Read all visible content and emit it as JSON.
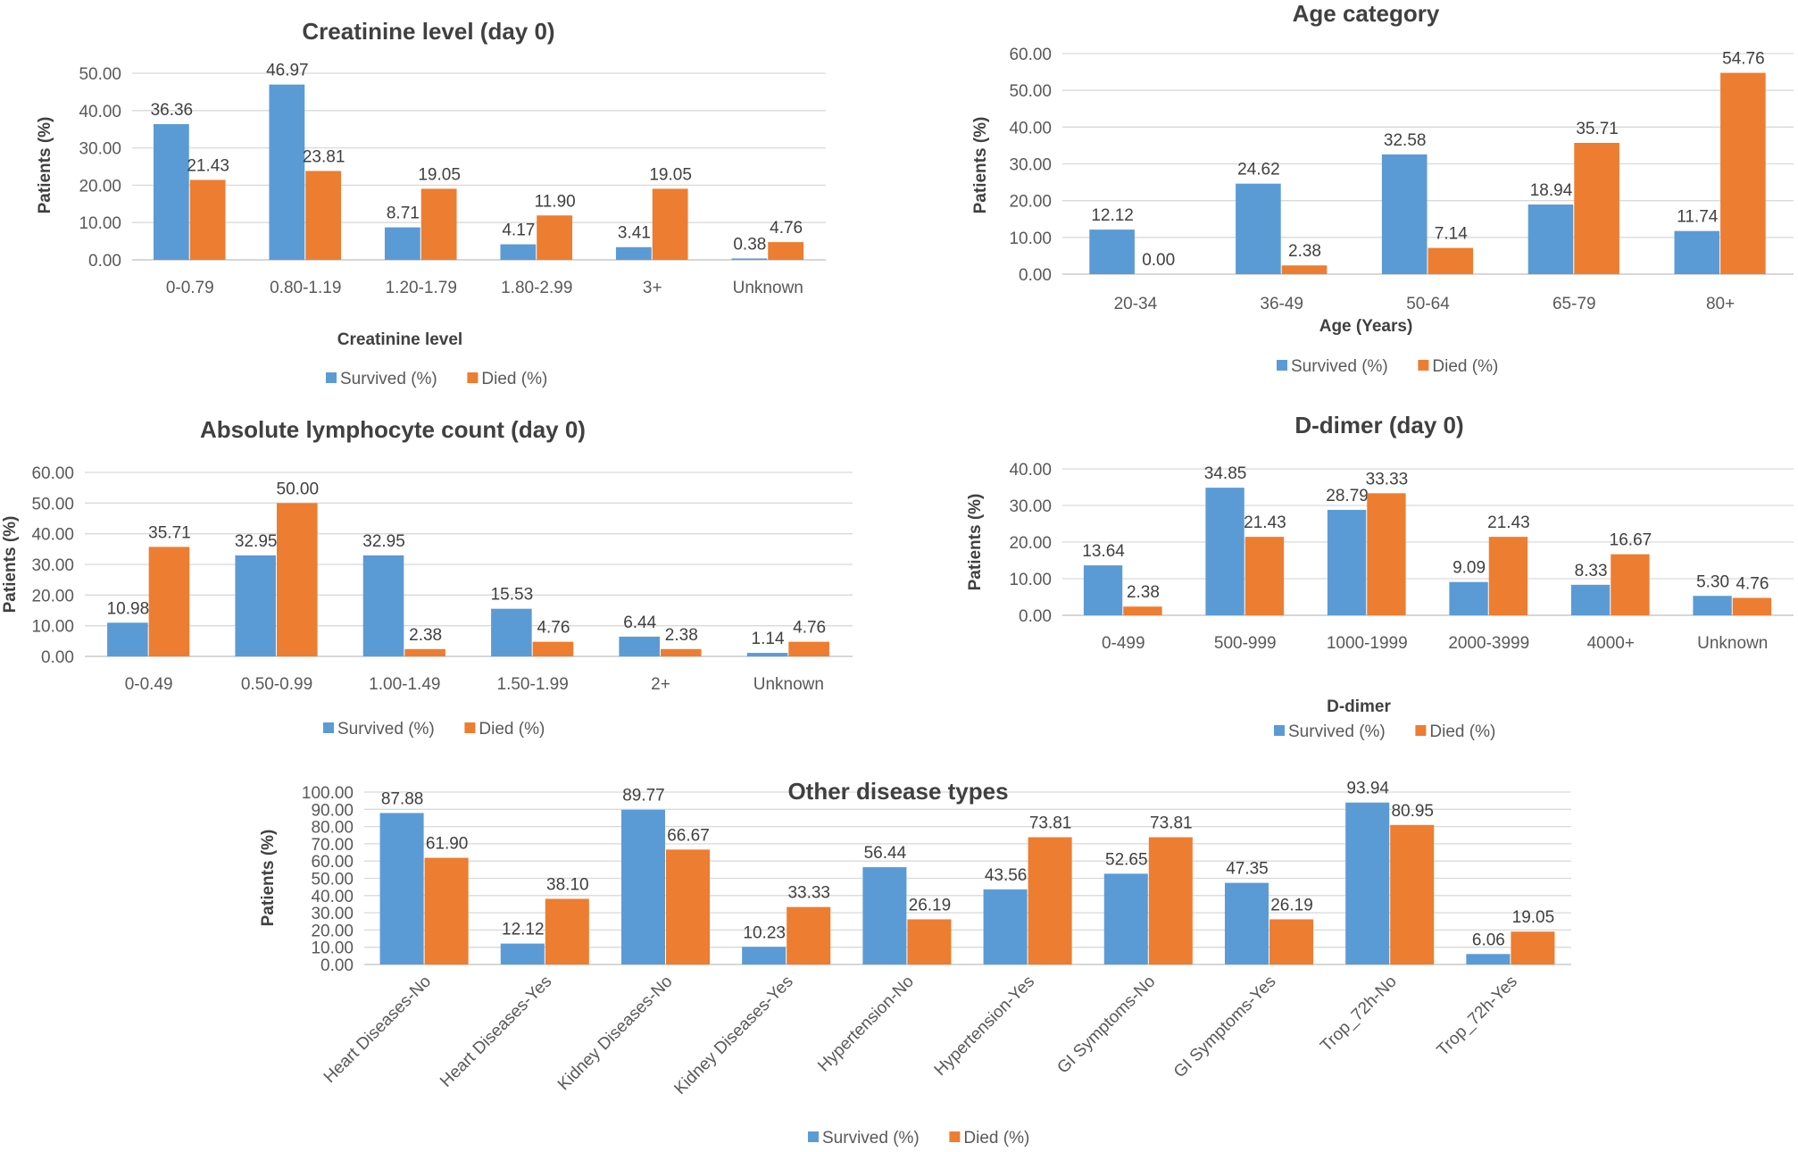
{
  "colors": {
    "survived": "#5b9bd5",
    "died": "#ed7d31"
  },
  "chart_data": [
    {
      "id": "creatinine",
      "type": "bar",
      "title": "Creatinine level (day 0)",
      "xlabel": "Creatinine level",
      "ylabel": "Patients (%)",
      "ylim": [
        0,
        50
      ],
      "yticks": [
        "0.00",
        "10.00",
        "20.00",
        "30.00",
        "40.00",
        "50.00"
      ],
      "categories": [
        "0-0.79",
        "0.80-1.19",
        "1.20-1.79",
        "1.80-2.99",
        "3+",
        "Unknown"
      ],
      "series": [
        {
          "name": "Survived (%)",
          "values": [
            36.36,
            46.97,
            8.71,
            4.17,
            3.41,
            0.38
          ],
          "labels": [
            "36.36",
            "46.97",
            "8.71",
            "4.17",
            "3.41",
            "0.38"
          ]
        },
        {
          "name": "Died (%)",
          "values": [
            21.43,
            23.81,
            19.05,
            11.9,
            19.05,
            4.76
          ],
          "labels": [
            "21.43",
            "23.81",
            "19.05",
            "11.90",
            "19.05",
            "4.76"
          ]
        }
      ],
      "legend": "bottom"
    },
    {
      "id": "age",
      "type": "bar",
      "title": "Age category",
      "xlabel": "Age (Years)",
      "ylabel": "Patients (%)",
      "ylim": [
        0,
        60
      ],
      "yticks": [
        "0.00",
        "10.00",
        "20.00",
        "30.00",
        "40.00",
        "50.00",
        "60.00"
      ],
      "categories": [
        "20-34",
        "36-49",
        "50-64",
        "65-79",
        "80+"
      ],
      "series": [
        {
          "name": "Survived (%)",
          "values": [
            12.12,
            24.62,
            32.58,
            18.94,
            11.74
          ],
          "labels": [
            "12.12",
            "24.62",
            "32.58",
            "18.94",
            "11.74"
          ]
        },
        {
          "name": "Died (%)",
          "values": [
            0.0,
            2.38,
            7.14,
            35.71,
            54.76
          ],
          "labels": [
            "0.00",
            "2.38",
            "7.14",
            "35.71",
            "54.76"
          ]
        }
      ],
      "legend": "bottom"
    },
    {
      "id": "lymphocyte",
      "type": "bar",
      "title": "Absolute lymphocyte count (day 0)",
      "xlabel": "",
      "ylabel": "Patients (%)",
      "ylim": [
        0,
        60
      ],
      "yticks": [
        "0.00",
        "10.00",
        "20.00",
        "30.00",
        "40.00",
        "50.00",
        "60.00"
      ],
      "categories": [
        "0-0.49",
        "0.50-0.99",
        "1.00-1.49",
        "1.50-1.99",
        "2+",
        "Unknown"
      ],
      "series": [
        {
          "name": "Survived (%)",
          "values": [
            10.98,
            32.95,
            32.95,
            15.53,
            6.44,
            1.14
          ],
          "labels": [
            "10.98",
            "32.95",
            "32.95",
            "15.53",
            "6.44",
            "1.14"
          ]
        },
        {
          "name": "Died (%)",
          "values": [
            35.71,
            50.0,
            2.38,
            4.76,
            2.38,
            4.76
          ],
          "labels": [
            "35.71",
            "50.00",
            "2.38",
            "4.76",
            "2.38",
            "4.76"
          ]
        }
      ],
      "legend": "bottom"
    },
    {
      "id": "ddimer",
      "type": "bar",
      "title": "D-dimer (day 0)",
      "xlabel": "D-dimer",
      "ylabel": "Patients (%)",
      "ylim": [
        0,
        40
      ],
      "yticks": [
        "0.00",
        "10.00",
        "20.00",
        "30.00",
        "40.00"
      ],
      "categories": [
        "0-499",
        "500-999",
        "1000-1999",
        "2000-3999",
        "4000+",
        "Unknown"
      ],
      "series": [
        {
          "name": "Survived (%)",
          "values": [
            13.64,
            34.85,
            28.79,
            9.09,
            8.33,
            5.3
          ],
          "labels": [
            "13.64",
            "34.85",
            "28.79",
            "9.09",
            "8.33",
            "5.30"
          ]
        },
        {
          "name": "Died (%)",
          "values": [
            2.38,
            21.43,
            33.33,
            21.43,
            16.67,
            4.76
          ],
          "labels": [
            "2.38",
            "21.43",
            "33.33",
            "21.43",
            "16.67",
            "4.76"
          ]
        }
      ],
      "legend": "bottom"
    },
    {
      "id": "other",
      "type": "bar",
      "title": "Other disease types",
      "xlabel": "",
      "ylabel": "Patients (%)",
      "ylim": [
        0,
        100
      ],
      "yticks": [
        "0.00",
        "10.00",
        "20.00",
        "30.00",
        "40.00",
        "50.00",
        "60.00",
        "70.00",
        "80.00",
        "90.00",
        "100.00"
      ],
      "categories": [
        "Heart Diseases-No",
        "Heart Diseases-Yes",
        "Kidney Diseases-No",
        "Kidney Diseases-Yes",
        "Hypertension-No",
        "Hypertension-Yes",
        "GI Symptoms-No",
        "GI Symptoms-Yes",
        "Trop_72h-No",
        "Trop_72h-Yes"
      ],
      "series": [
        {
          "name": "Survived (%)",
          "values": [
            87.88,
            12.12,
            89.77,
            10.23,
            56.44,
            43.56,
            52.65,
            47.35,
            93.94,
            6.06
          ],
          "labels": [
            "87.88",
            "12.12",
            "89.77",
            "10.23",
            "56.44",
            "43.56",
            "52.65",
            "47.35",
            "93.94",
            "6.06"
          ]
        },
        {
          "name": "Died (%)",
          "values": [
            61.9,
            38.1,
            66.67,
            33.33,
            26.19,
            73.81,
            73.81,
            26.19,
            80.95,
            19.05
          ],
          "labels": [
            "61.90",
            "38.10",
            "66.67",
            "33.33",
            "26.19",
            "73.81",
            "73.81",
            "26.19",
            "80.95",
            "19.05"
          ]
        }
      ],
      "legend": "bottom"
    }
  ]
}
